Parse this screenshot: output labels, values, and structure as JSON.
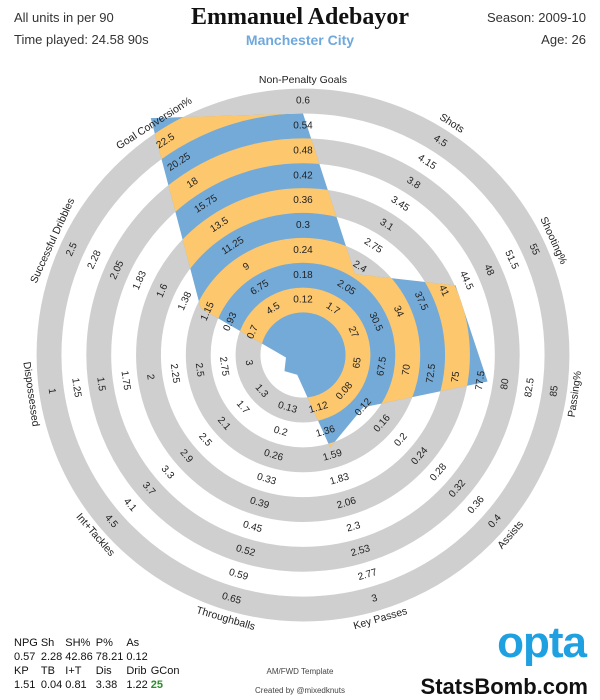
{
  "header": {
    "units": "All units in per 90",
    "time_played": "Time played: 24.58 90s",
    "season": "Season: 2009-10",
    "age": "Age: 26"
  },
  "chart_data": {
    "type": "radar",
    "title": "Emmanuel Adebayor",
    "subtitle": "Manchester City",
    "axes": [
      {
        "name": "Non-Penalty Goals",
        "ticks": [
          0.12,
          0.18,
          0.24,
          0.3,
          0.36,
          0.42,
          0.48,
          0.54,
          0.6
        ]
      },
      {
        "name": "Shots",
        "ticks": [
          1.7,
          2.05,
          2.4,
          2.75,
          3.1,
          3.45,
          3.8,
          4.15,
          4.5
        ]
      },
      {
        "name": "Shooting%",
        "ticks": [
          27,
          30.5,
          34,
          37.5,
          41,
          44.5,
          48,
          51.5,
          55
        ]
      },
      {
        "name": "Passing%",
        "ticks": [
          65,
          67.5,
          70,
          72.5,
          75,
          77.5,
          80,
          82.5,
          85
        ]
      },
      {
        "name": "Assists",
        "ticks": [
          0.08,
          0.12,
          0.16,
          0.2,
          0.24,
          0.28,
          0.32,
          0.36,
          0.4
        ]
      },
      {
        "name": "Key Passes",
        "ticks": [
          1.12,
          1.36,
          1.59,
          1.83,
          2.06,
          2.3,
          2.53,
          2.77,
          3
        ]
      },
      {
        "name": "Throughballs",
        "ticks": [
          0.13,
          0.2,
          0.26,
          0.33,
          0.39,
          0.45,
          0.52,
          0.59,
          0.65
        ]
      },
      {
        "name": "Int+Tackles",
        "ticks": [
          1.3,
          1.7,
          2.1,
          2.5,
          2.9,
          3.3,
          3.7,
          4.1,
          4.5
        ]
      },
      {
        "name": "Dispossessed",
        "ticks": [
          3,
          2.75,
          2.5,
          2.25,
          2,
          1.75,
          1.5,
          1.25,
          1
        ]
      },
      {
        "name": "Successful Dribbles",
        "ticks": [
          0.7,
          0.93,
          1.15,
          1.38,
          1.6,
          1.83,
          2.05,
          2.28,
          2.5
        ]
      },
      {
        "name": "Goal Conversion%",
        "ticks": [
          4.5,
          6.75,
          9,
          11.25,
          13.5,
          15.75,
          18,
          20.25,
          22.5
        ]
      }
    ],
    "short_names": [
      "NPG",
      "Sh",
      "SH%",
      "P%",
      "As",
      "KP",
      "TB",
      "I+T",
      "Dis",
      "Drib",
      "GCon"
    ],
    "values": [
      0.57,
      2.28,
      42.86,
      78.21,
      0.12,
      1.51,
      0.04,
      0.81,
      3.38,
      1.22,
      25
    ],
    "colors": [
      "#74aad8",
      "#fdc76e"
    ],
    "ring_color": "#cfcfcf"
  },
  "footer": {
    "template": "AM/FWD Template",
    "credit": "Created by @mixedknuts",
    "logo": "opta",
    "site": "StatsBomb.com"
  }
}
